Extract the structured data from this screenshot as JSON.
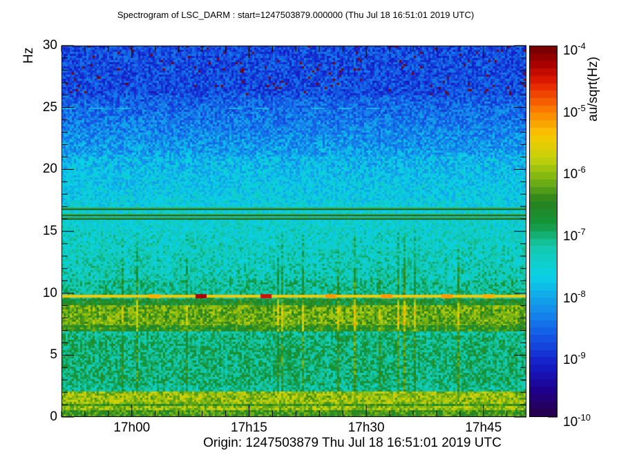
{
  "title": "Spectrogram of LSC_DARM : start=1247503879.000000 (Thu Jul 18 16:51:01 2019 UTC)",
  "chart_data": {
    "type": "heatmap",
    "title": "Spectrogram of LSC_DARM : start=1247503879.000000 (Thu Jul 18 16:51:01 2019 UTC)",
    "xlabel": "Origin: 1247503879  Thu Jul 18 16:51:01 2019 UTC",
    "ylabel": "Hz",
    "colorbar_label": "au/sqrt(Hz)",
    "x_ticks": [
      "17h00",
      "17h15",
      "17h30",
      "17h45"
    ],
    "x_tick_minutes": [
      9,
      24,
      39,
      54
    ],
    "xlim_minutes": [
      0,
      59.5
    ],
    "y_ticks": [
      "0",
      "5",
      "10",
      "15",
      "20",
      "25",
      "30"
    ],
    "ylim": [
      0,
      30
    ],
    "colorbar": {
      "scale": "log",
      "range": [
        1e-10,
        0.0001
      ],
      "tick_bases": [
        "10",
        "10",
        "10",
        "10",
        "10",
        "10",
        "10"
      ],
      "tick_exponents": [
        "-10",
        "-9",
        "-8",
        "-7",
        "-6",
        "-5",
        "-4"
      ]
    },
    "features": {
      "constant_lines_hz": [
        16.0,
        16.3,
        16.8
      ],
      "strong_band_hz": [
        9.6,
        9.9
      ],
      "broad_band_hz": [
        7.0,
        9.0
      ],
      "low_freq_band_hz": [
        0.5,
        2.0
      ],
      "intermittent_line_hz": 25.0
    }
  }
}
